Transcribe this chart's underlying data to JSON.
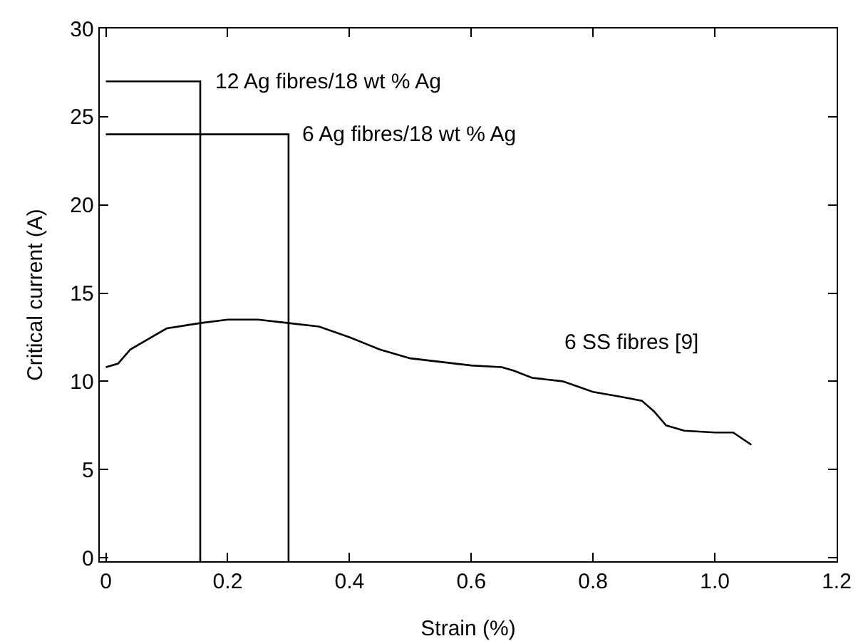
{
  "chart_data": {
    "type": "line",
    "xlabel": "Strain (%)",
    "ylabel": "Critical current (A)",
    "xlim": [
      -0.01,
      1.2
    ],
    "xticks": [
      0,
      0.2,
      0.4,
      0.6,
      0.8,
      {
        "value": 1,
        "label": "1.0"
      },
      1.2
    ],
    "ylim": [
      -0.2,
      30
    ],
    "yticks": [
      0,
      5,
      10,
      15,
      20,
      25,
      30
    ],
    "grid": false,
    "legend": false,
    "marker": "none",
    "line_style": "solid",
    "series": [
      {
        "name": "12 Ag fibres/18 wt % Ag",
        "color": "#000000",
        "x": [
          0,
          0.155,
          0.155
        ],
        "values": [
          27,
          27,
          -0.2
        ]
      },
      {
        "name": "6 Ag fibres/18 wt % Ag",
        "color": "#000000",
        "x": [
          0,
          0.3,
          0.3
        ],
        "values": [
          24,
          24,
          -0.2
        ]
      },
      {
        "name": "6 SS fibres [9]",
        "color": "#000000",
        "x": [
          0,
          0.02,
          0.04,
          0.07,
          0.1,
          0.155,
          0.2,
          0.25,
          0.3,
          0.35,
          0.4,
          0.45,
          0.5,
          0.55,
          0.6,
          0.65,
          0.67,
          0.7,
          0.75,
          0.8,
          0.85,
          0.88,
          0.9,
          0.92,
          0.95,
          1.0,
          1.03,
          1.06
        ],
        "values": [
          10.8,
          11,
          11.8,
          12.4,
          13,
          13.3,
          13.5,
          13.5,
          13.3,
          13.1,
          12.5,
          11.8,
          11.3,
          11.1,
          10.9,
          10.8,
          10.6,
          10.2,
          10,
          9.4,
          9.1,
          8.9,
          8.3,
          7.5,
          7.2,
          7.1,
          7.1,
          6.4
        ]
      }
    ]
  }
}
